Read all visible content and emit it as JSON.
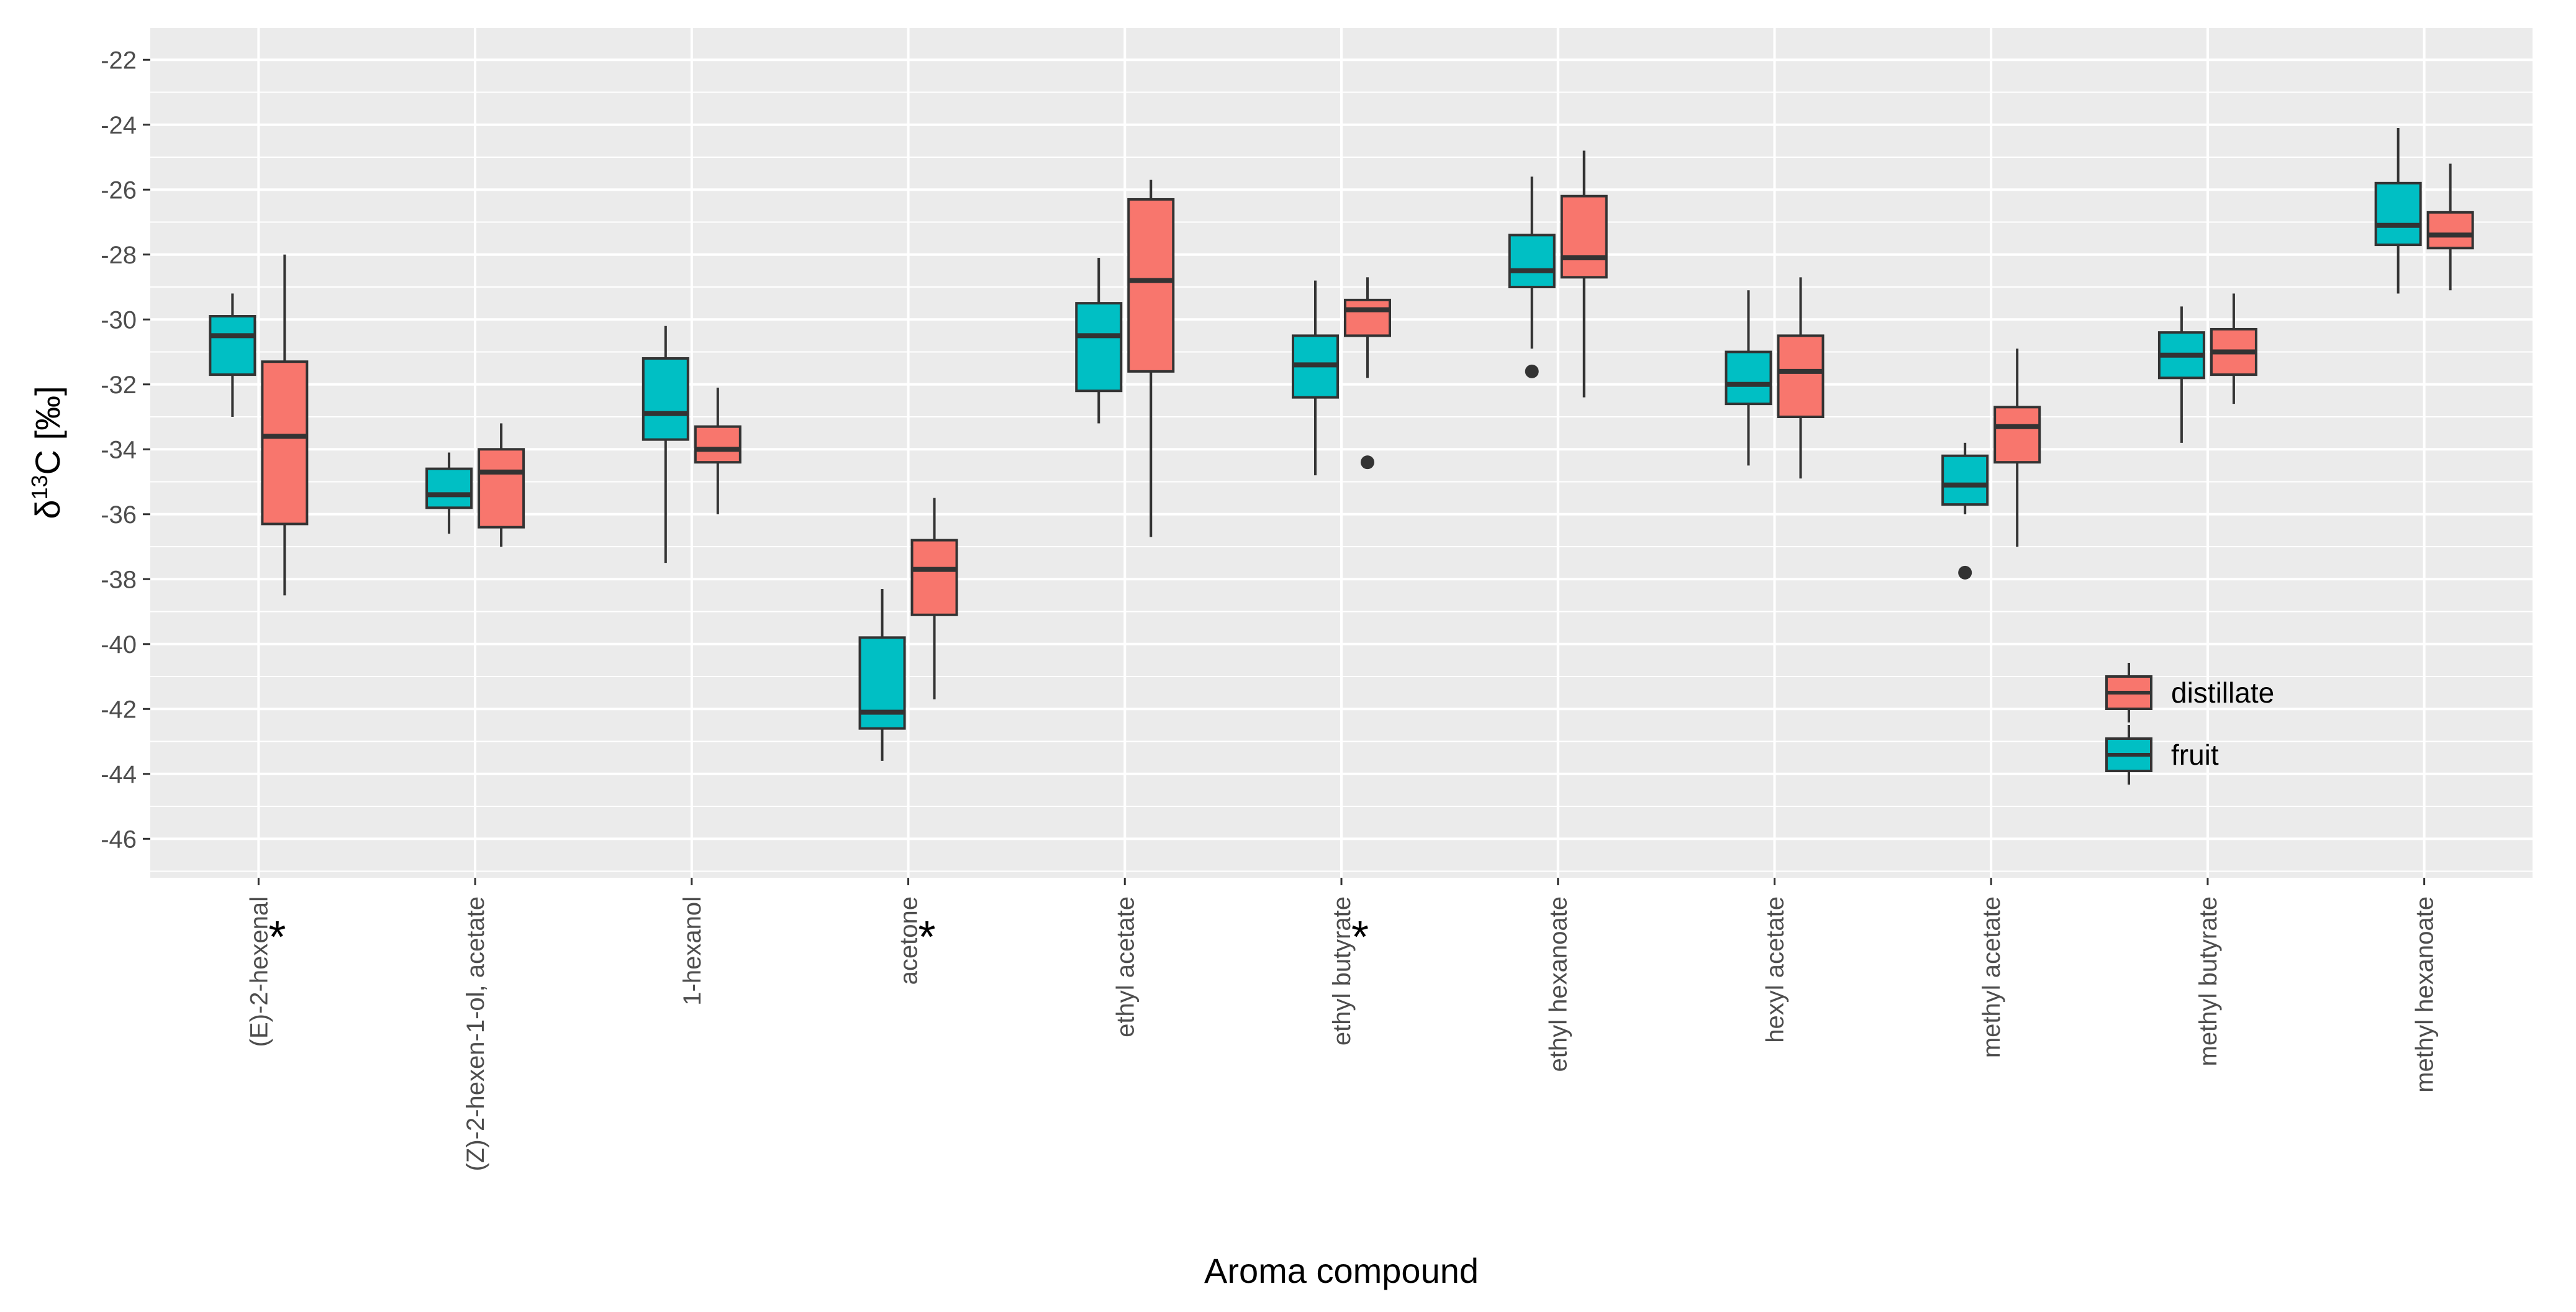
{
  "chart_data": {
    "type": "boxplot",
    "title": "",
    "xlabel": "Aroma compound",
    "ylabel_prefix": "δ",
    "ylabel_superscript": "13",
    "ylabel_suffix": "C [‰]",
    "ylim": [
      -47.2,
      -21.0
    ],
    "yticks": [
      -46,
      -44,
      -42,
      -40,
      -38,
      -36,
      -34,
      -32,
      -30,
      -28,
      -26,
      -24,
      -22
    ],
    "grid": true,
    "legend_position": "right",
    "colors": {
      "fruit": "#00bfc4",
      "distillate": "#f8766d",
      "panel": "#ebebeb",
      "grid": "#ffffff"
    },
    "legend": [
      {
        "key": "distillate",
        "label": "distillate",
        "color": "#f8766d"
      },
      {
        "key": "fruit",
        "label": "fruit",
        "color": "#00bfc4"
      }
    ],
    "categories": [
      {
        "label": "(E)-2-hexenal",
        "significance": "*",
        "fruit": {
          "min": -33.0,
          "q1": -31.7,
          "median": -30.5,
          "q3": -29.9,
          "max": -29.2,
          "outliers": []
        },
        "distillate": {
          "min": -38.5,
          "q1": -36.3,
          "median": -33.6,
          "q3": -31.3,
          "max": -28.0,
          "outliers": []
        }
      },
      {
        "label": "(Z)-2-hexen-1-ol, acetate",
        "significance": "",
        "fruit": {
          "min": -36.6,
          "q1": -35.8,
          "median": -35.4,
          "q3": -34.6,
          "max": -34.1,
          "outliers": []
        },
        "distillate": {
          "min": -37.0,
          "q1": -36.4,
          "median": -34.7,
          "q3": -34.0,
          "max": -33.2,
          "outliers": []
        }
      },
      {
        "label": "1-hexanol",
        "significance": "",
        "fruit": {
          "min": -37.5,
          "q1": -33.7,
          "median": -32.9,
          "q3": -31.2,
          "max": -30.2,
          "outliers": []
        },
        "distillate": {
          "min": -36.0,
          "q1": -34.4,
          "median": -34.0,
          "q3": -33.3,
          "max": -32.1,
          "outliers": []
        }
      },
      {
        "label": "acetone",
        "significance": "*",
        "fruit": {
          "min": -43.6,
          "q1": -42.6,
          "median": -42.1,
          "q3": -39.8,
          "max": -38.3,
          "outliers": []
        },
        "distillate": {
          "min": -41.7,
          "q1": -39.1,
          "median": -37.7,
          "q3": -36.8,
          "max": -35.5,
          "outliers": []
        }
      },
      {
        "label": "ethyl acetate",
        "significance": "",
        "fruit": {
          "min": -33.2,
          "q1": -32.2,
          "median": -30.5,
          "q3": -29.5,
          "max": -28.1,
          "outliers": []
        },
        "distillate": {
          "min": -36.7,
          "q1": -31.6,
          "median": -28.8,
          "q3": -26.3,
          "max": -25.7,
          "outliers": []
        }
      },
      {
        "label": "ethyl butyrate",
        "significance": "*",
        "fruit": {
          "min": -34.8,
          "q1": -32.4,
          "median": -31.4,
          "q3": -30.5,
          "max": -28.8,
          "outliers": []
        },
        "distillate": {
          "min": -31.8,
          "q1": -30.5,
          "median": -29.7,
          "q3": -29.4,
          "max": -28.7,
          "outliers": [
            -34.4
          ]
        }
      },
      {
        "label": "ethyl hexanoate",
        "significance": "",
        "fruit": {
          "min": -30.9,
          "q1": -29.0,
          "median": -28.5,
          "q3": -27.4,
          "max": -25.6,
          "outliers": [
            -31.6
          ]
        },
        "distillate": {
          "min": -32.4,
          "q1": -28.7,
          "median": -28.1,
          "q3": -26.2,
          "max": -24.8,
          "outliers": []
        }
      },
      {
        "label": "hexyl acetate",
        "significance": "",
        "fruit": {
          "min": -34.5,
          "q1": -32.6,
          "median": -32.0,
          "q3": -31.0,
          "max": -29.1,
          "outliers": []
        },
        "distillate": {
          "min": -34.9,
          "q1": -33.0,
          "median": -31.6,
          "q3": -30.5,
          "max": -28.7,
          "outliers": []
        }
      },
      {
        "label": "methyl acetate",
        "significance": "",
        "fruit": {
          "min": -36.0,
          "q1": -35.7,
          "median": -35.1,
          "q3": -34.2,
          "max": -33.8,
          "outliers": [
            -37.8
          ]
        },
        "distillate": {
          "min": -37.0,
          "q1": -34.4,
          "median": -33.3,
          "q3": -32.7,
          "max": -30.9,
          "outliers": []
        }
      },
      {
        "label": "methyl butyrate",
        "significance": "",
        "fruit": {
          "min": -33.8,
          "q1": -31.8,
          "median": -31.1,
          "q3": -30.4,
          "max": -29.6,
          "outliers": []
        },
        "distillate": {
          "min": -32.6,
          "q1": -31.7,
          "median": -31.0,
          "q3": -30.3,
          "max": -29.2,
          "outliers": []
        }
      },
      {
        "label": "methyl hexanoate",
        "significance": "",
        "fruit": {
          "min": -29.2,
          "q1": -27.7,
          "median": -27.1,
          "q3": -25.8,
          "max": -24.1,
          "outliers": []
        },
        "distillate": {
          "min": -29.1,
          "q1": -27.8,
          "median": -27.4,
          "q3": -26.7,
          "max": -25.2,
          "outliers": []
        }
      }
    ]
  }
}
